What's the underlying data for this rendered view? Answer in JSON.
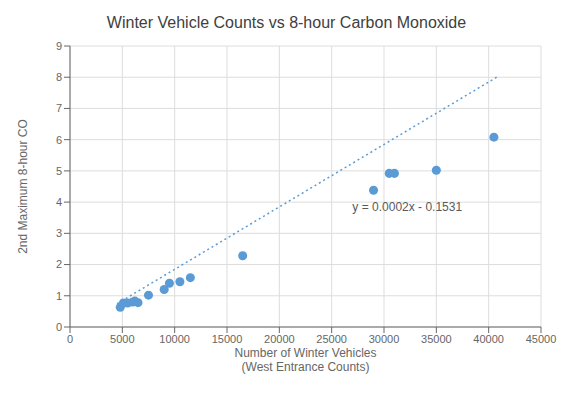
{
  "chart_data": {
    "type": "scatter",
    "title": "Winter Vehicle Counts vs 8-hour Carbon Monoxide",
    "x_label": "Number of Winter Vehicles\n(West Entrance Counts)",
    "y_label": "2nd Maximum 8-hour CO",
    "x": [
      4800,
      5100,
      5500,
      6000,
      6200,
      6500,
      7500,
      9000,
      9500,
      10500,
      11500,
      16500,
      29000,
      30500,
      31000,
      35000,
      40500
    ],
    "values": [
      0.63,
      0.77,
      0.77,
      0.8,
      0.83,
      0.78,
      1.02,
      1.2,
      1.4,
      1.45,
      1.58,
      2.28,
      4.38,
      4.92,
      4.92,
      5.02,
      6.08
    ],
    "color": "#5B9BD5",
    "marker": "circle",
    "trend_line": {
      "x": [
        4500,
        41000
      ],
      "values": [
        0.7469,
        8.0469
      ],
      "color": "#5B9BD5",
      "line_style": "dotted"
    },
    "annotations": [
      {
        "text": "y = 0.0002x - 0.1531",
        "x": 26500,
        "y": 3.85
      }
    ],
    "xlim": [
      0,
      45000
    ],
    "ylim": [
      0,
      9
    ],
    "xticks": [
      0,
      5000,
      10000,
      15000,
      20000,
      25000,
      30000,
      35000,
      40000,
      45000
    ],
    "yticks": [
      0,
      1,
      2,
      3,
      4,
      5,
      6,
      7,
      8,
      9
    ],
    "grid": true
  }
}
